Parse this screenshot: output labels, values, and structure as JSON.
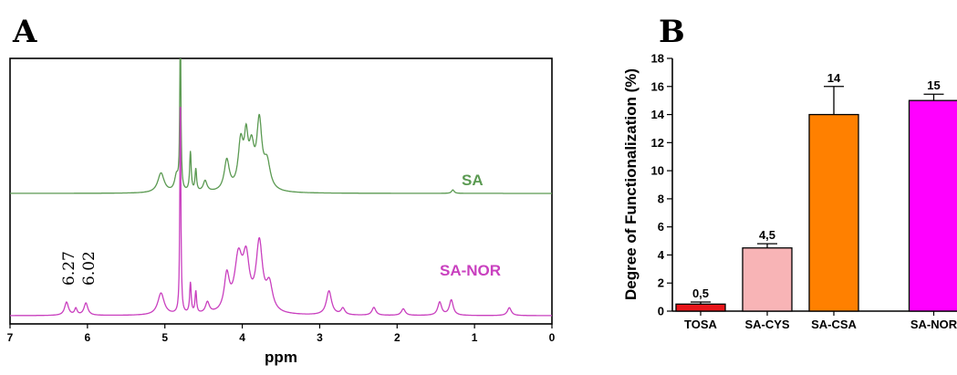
{
  "chart_data": [
    {
      "panel": "A",
      "type": "line",
      "xlabel": "ppm",
      "ylabel": "",
      "xlim": [
        7,
        0
      ],
      "x_ticks": [
        "7",
        "6",
        "5",
        "4",
        "3",
        "2",
        "1",
        "0"
      ],
      "x_tick_values": [
        7,
        6,
        5,
        4,
        3,
        2,
        1,
        0
      ],
      "series": [
        {
          "name": "SA",
          "color": "#5b9a52",
          "peaks": [
            {
              "x": 5.05,
              "h": 0.45,
              "w": 0.05
            },
            {
              "x": 4.85,
              "h": 0.35,
              "w": 0.03
            },
            {
              "x": 4.8,
              "h": 4.0,
              "w": 0.008
            },
            {
              "x": 4.67,
              "h": 0.9,
              "w": 0.012
            },
            {
              "x": 4.6,
              "h": 0.5,
              "w": 0.012
            },
            {
              "x": 4.48,
              "h": 0.25,
              "w": 0.03
            },
            {
              "x": 4.2,
              "h": 0.7,
              "w": 0.04
            },
            {
              "x": 4.02,
              "h": 1.05,
              "w": 0.04
            },
            {
              "x": 3.95,
              "h": 1.0,
              "w": 0.03
            },
            {
              "x": 3.88,
              "h": 0.85,
              "w": 0.04
            },
            {
              "x": 3.78,
              "h": 1.5,
              "w": 0.04
            },
            {
              "x": 3.68,
              "h": 0.6,
              "w": 0.05
            },
            {
              "x": 1.28,
              "h": 0.08,
              "w": 0.02
            }
          ]
        },
        {
          "name": "SA-NOR",
          "color": "#c940bf",
          "peaks": [
            {
              "x": 6.27,
              "h": 0.3,
              "w": 0.03
            },
            {
              "x": 6.15,
              "h": 0.15,
              "w": 0.02
            },
            {
              "x": 6.02,
              "h": 0.28,
              "w": 0.03
            },
            {
              "x": 5.05,
              "h": 0.5,
              "w": 0.05
            },
            {
              "x": 4.8,
              "h": 5.0,
              "w": 0.008
            },
            {
              "x": 4.67,
              "h": 0.7,
              "w": 0.012
            },
            {
              "x": 4.6,
              "h": 0.5,
              "w": 0.012
            },
            {
              "x": 4.45,
              "h": 0.25,
              "w": 0.03
            },
            {
              "x": 4.2,
              "h": 0.8,
              "w": 0.04
            },
            {
              "x": 4.05,
              "h": 1.2,
              "w": 0.06
            },
            {
              "x": 3.95,
              "h": 1.1,
              "w": 0.05
            },
            {
              "x": 3.78,
              "h": 1.55,
              "w": 0.05
            },
            {
              "x": 3.65,
              "h": 0.6,
              "w": 0.05
            },
            {
              "x": 2.88,
              "h": 0.55,
              "w": 0.04
            },
            {
              "x": 2.7,
              "h": 0.15,
              "w": 0.03
            },
            {
              "x": 2.3,
              "h": 0.18,
              "w": 0.03
            },
            {
              "x": 1.92,
              "h": 0.15,
              "w": 0.03
            },
            {
              "x": 1.45,
              "h": 0.3,
              "w": 0.03
            },
            {
              "x": 1.3,
              "h": 0.35,
              "w": 0.03
            },
            {
              "x": 0.55,
              "h": 0.18,
              "w": 0.03
            }
          ]
        }
      ],
      "annotations": [
        {
          "text": "6.27",
          "x": 6.27
        },
        {
          "text": "6.02",
          "x": 6.02
        }
      ]
    },
    {
      "panel": "B",
      "type": "bar",
      "ylabel": "Degree of Functionalization (%)",
      "xlabel": "",
      "ylim": [
        0,
        18
      ],
      "y_ticks": [
        "0",
        "2",
        "4",
        "6",
        "8",
        "10",
        "12",
        "14",
        "16",
        "18"
      ],
      "categories": [
        "TOSA",
        "SA-CYS",
        "SA-CSA",
        "SA-NOR"
      ],
      "category_positions": [
        0,
        1,
        2,
        3.5
      ],
      "values": [
        0.5,
        4.5,
        14,
        15
      ],
      "errors": [
        0.15,
        0.3,
        2.0,
        0.45
      ],
      "value_labels": [
        "0,5",
        "4,5",
        "14",
        "15"
      ],
      "colors": [
        "#e8161b",
        "#f8b4b6",
        "#ff8000",
        "#ff00ff"
      ]
    }
  ]
}
